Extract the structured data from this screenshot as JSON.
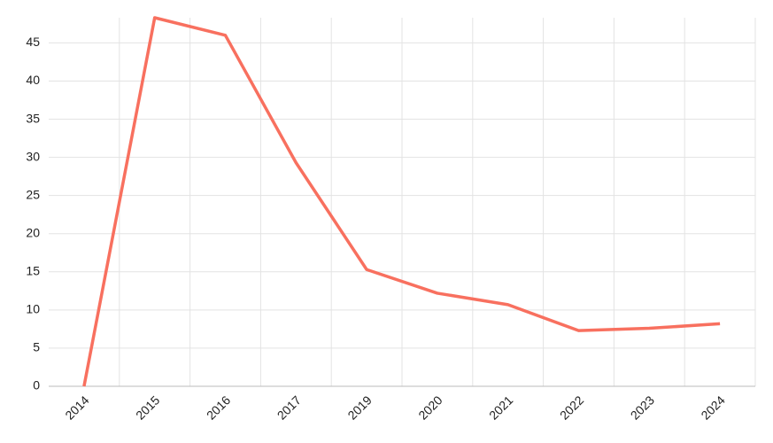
{
  "chart_data": {
    "type": "line",
    "categories": [
      "2014",
      "2015",
      "2016",
      "2017",
      "2019",
      "2020",
      "2021",
      "2022",
      "2023",
      "2024"
    ],
    "values": [
      0,
      48.3,
      46,
      29.3,
      15.3,
      12.2,
      10.7,
      7.3,
      7.6,
      8.2
    ],
    "color": "#f8705f",
    "ylim": [
      0,
      48.3
    ],
    "yticks": [
      0,
      5,
      10,
      15,
      20,
      25,
      30,
      35,
      40,
      45
    ],
    "grid": true
  }
}
